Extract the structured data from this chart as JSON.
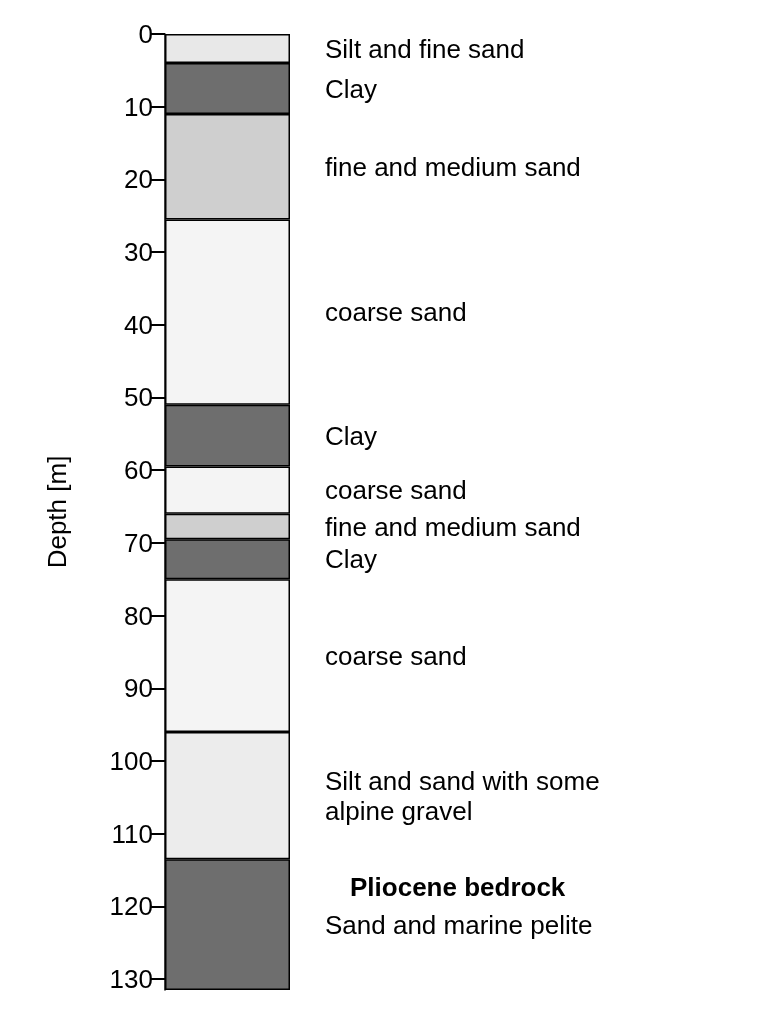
{
  "chart_data": {
    "type": "bar",
    "stacked": true,
    "ylabel": "Depth [m]",
    "categories": [
      null
    ],
    "ylim": [
      131.5,
      0
    ],
    "yticks": [
      0,
      10,
      20,
      30,
      40,
      50,
      60,
      70,
      80,
      90,
      100,
      110,
      120,
      130
    ],
    "grid": false,
    "legend": false,
    "tick_labels": "y",
    "series": [
      {
        "name": "Silt and fine sand",
        "color": "#e8e8e8",
        "values": [
          4
        ]
      },
      {
        "name": "Clay",
        "color": "#6e6e6e",
        "values": [
          7
        ]
      },
      {
        "name": "fine and medium sand",
        "color": "#cfcfcf",
        "values": [
          14.5
        ]
      },
      {
        "name": "coarse sand",
        "color": "#f4f4f4",
        "values": [
          25.5
        ]
      },
      {
        "name": "Clay",
        "color": "#6e6e6e",
        "values": [
          8.5
        ]
      },
      {
        "name": "coarse sand",
        "color": "#f4f4f4",
        "values": [
          6.5
        ]
      },
      {
        "name": "fine and medium sand",
        "color": "#cfcfcf",
        "values": [
          3.5
        ]
      },
      {
        "name": "Clay",
        "color": "#6e6e6e",
        "values": [
          5.5
        ]
      },
      {
        "name": "coarse sand",
        "color": "#f4f4f4",
        "values": [
          21
        ]
      },
      {
        "name": "Silt and sand with some alpine gravel",
        "color": "#ececec",
        "values": [
          17.5
        ]
      },
      {
        "name": "Sand and marine pelite",
        "color": "#6e6e6e",
        "values": [
          18
        ]
      }
    ],
    "annotations": [
      "Pliocene bedrock"
    ]
  }
}
